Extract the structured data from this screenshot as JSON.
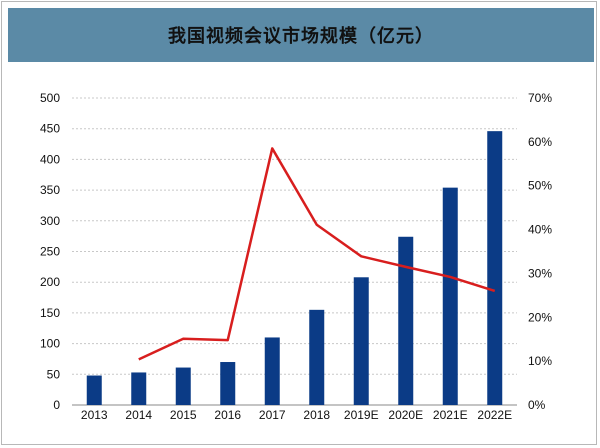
{
  "title": "我国视频会议市场规模（亿元）",
  "colors": {
    "bar": "#0b3b86",
    "line": "#d81e1e",
    "header": "#5b8aa6",
    "grid": "#c8c8c8"
  },
  "chart_data": {
    "type": "bar+line",
    "title": "我国视频会议市场规模（亿元）",
    "categories": [
      "2013",
      "2014",
      "2015",
      "2016",
      "2017",
      "2018",
      "2019E",
      "2020E",
      "2021E",
      "2022E"
    ],
    "series": [
      {
        "type": "bar",
        "axis": "left",
        "values": [
          48,
          53,
          61,
          70,
          110,
          155,
          208,
          274,
          354,
          446
        ]
      },
      {
        "type": "line",
        "axis": "right",
        "values": [
          null,
          10.4,
          15.1,
          14.8,
          58.5,
          41.1,
          33.9,
          31.5,
          29.2,
          26.0
        ]
      }
    ],
    "y_left": {
      "min": 0,
      "max": 500,
      "step": 50,
      "ticks": [
        "0",
        "50",
        "100",
        "150",
        "200",
        "250",
        "300",
        "350",
        "400",
        "450",
        "500"
      ]
    },
    "y_right": {
      "min": 0,
      "max": 70,
      "step": 10,
      "ticks": [
        "0%",
        "10%",
        "20%",
        "30%",
        "40%",
        "50%",
        "60%",
        "70%"
      ]
    },
    "grid": true,
    "legend": "none"
  }
}
